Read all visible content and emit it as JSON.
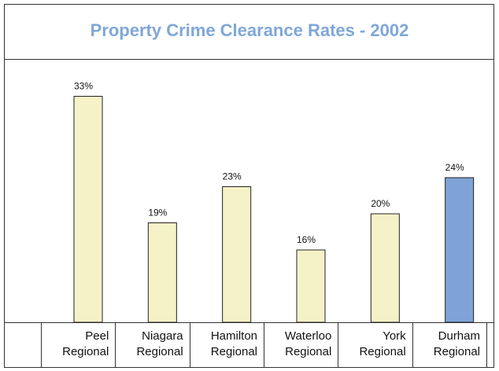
{
  "chart_data": {
    "type": "bar",
    "title": "Property Crime Clearance Rates - 2002",
    "categories": [
      "Peel Regional",
      "Niagara Regional",
      "Hamilton Regional",
      "Waterloo Regional",
      "York Regional",
      "Durham Regional"
    ],
    "values": [
      33,
      19,
      23,
      16,
      20,
      24
    ],
    "value_labels": [
      "33%",
      "19%",
      "23%",
      "16%",
      "20%",
      "24%"
    ],
    "colors": [
      "#f6f2c8",
      "#f6f2c8",
      "#f6f2c8",
      "#f6f2c8",
      "#f6f2c8",
      "#7fa3d6"
    ],
    "ylim": [
      8,
      36
    ]
  }
}
